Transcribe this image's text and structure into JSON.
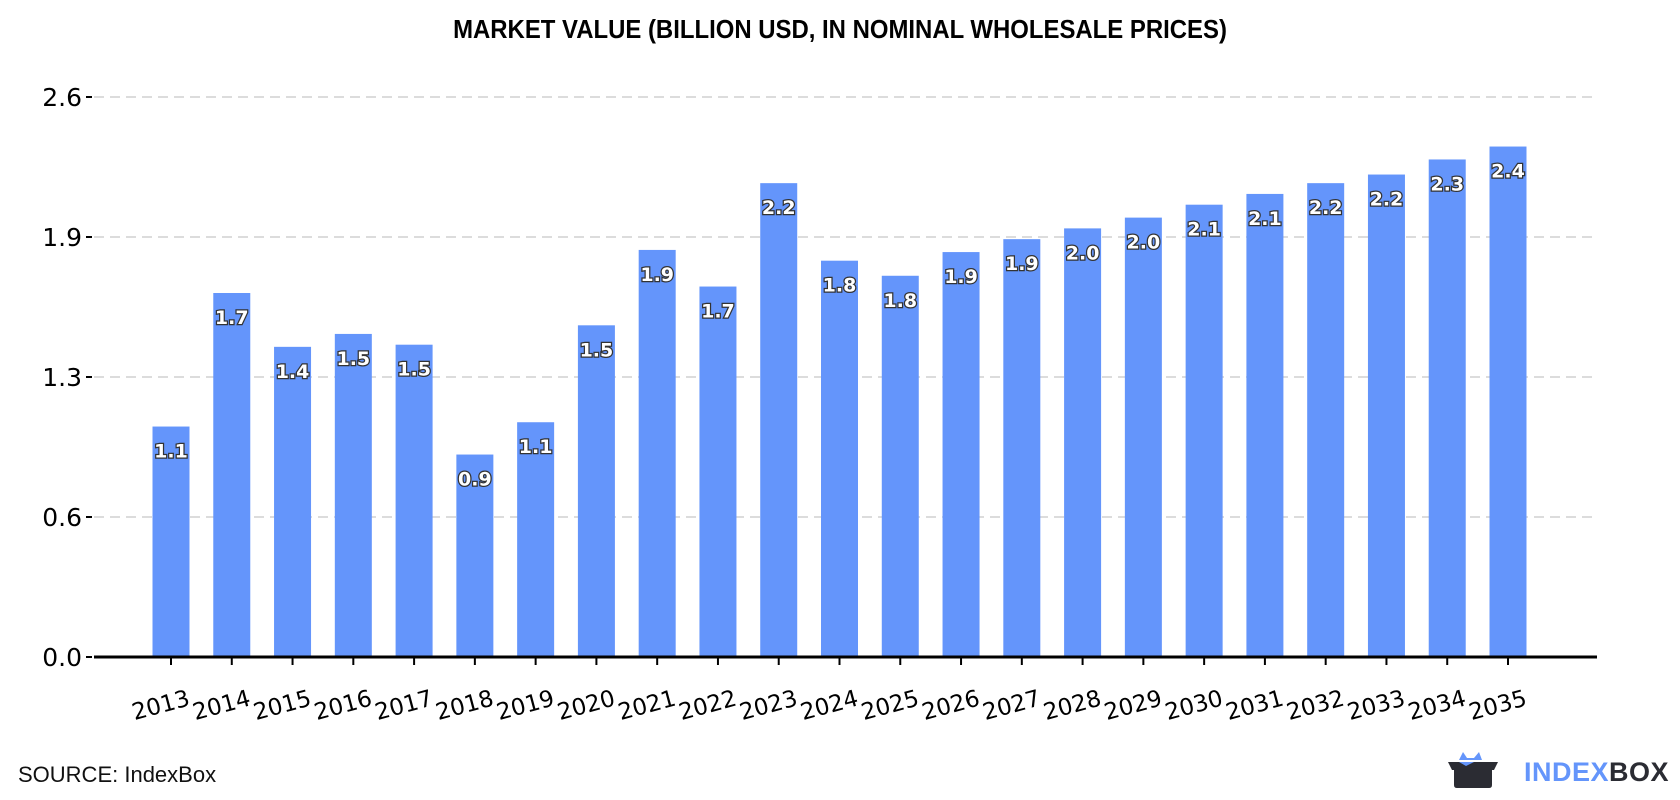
{
  "chart_data": {
    "type": "bar",
    "title": "MARKET VALUE (BILLION USD, IN NOMINAL WHOLESALE PRICES)",
    "xlabel": "",
    "ylabel": "",
    "categories": [
      "2013",
      "2014",
      "2015",
      "2016",
      "2017",
      "2018",
      "2019",
      "2020",
      "2021",
      "2022",
      "2023",
      "2024",
      "2025",
      "2026",
      "2027",
      "2028",
      "2029",
      "2030",
      "2031",
      "2032",
      "2033",
      "2034",
      "2035"
    ],
    "values": [
      1.07,
      1.69,
      1.44,
      1.5,
      1.45,
      0.94,
      1.09,
      1.54,
      1.89,
      1.72,
      2.2,
      1.84,
      1.77,
      1.88,
      1.94,
      1.99,
      2.04,
      2.1,
      2.15,
      2.2,
      2.24,
      2.31,
      2.37
    ],
    "data_labels": [
      "1.1",
      "1.7",
      "1.4",
      "1.5",
      "1.5",
      "0.9",
      "1.1",
      "1.5",
      "1.9",
      "1.7",
      "2.2",
      "1.8",
      "1.8",
      "1.9",
      "1.9",
      "2.0",
      "2.0",
      "2.1",
      "2.1",
      "2.2",
      "2.2",
      "2.3",
      "2.4"
    ],
    "y_ticks": [
      0,
      0.65,
      1.3,
      1.95,
      2.6
    ],
    "y_tick_labels": [
      "0.0",
      "0.6",
      "1.3",
      "1.9",
      "2.6"
    ],
    "ylim": [
      0,
      2.6
    ],
    "grid": true,
    "bar_color": "#6495fb"
  },
  "source": "SOURCE: IndexBox",
  "logo": {
    "part1": "INDEX",
    "part2": "BOX"
  }
}
